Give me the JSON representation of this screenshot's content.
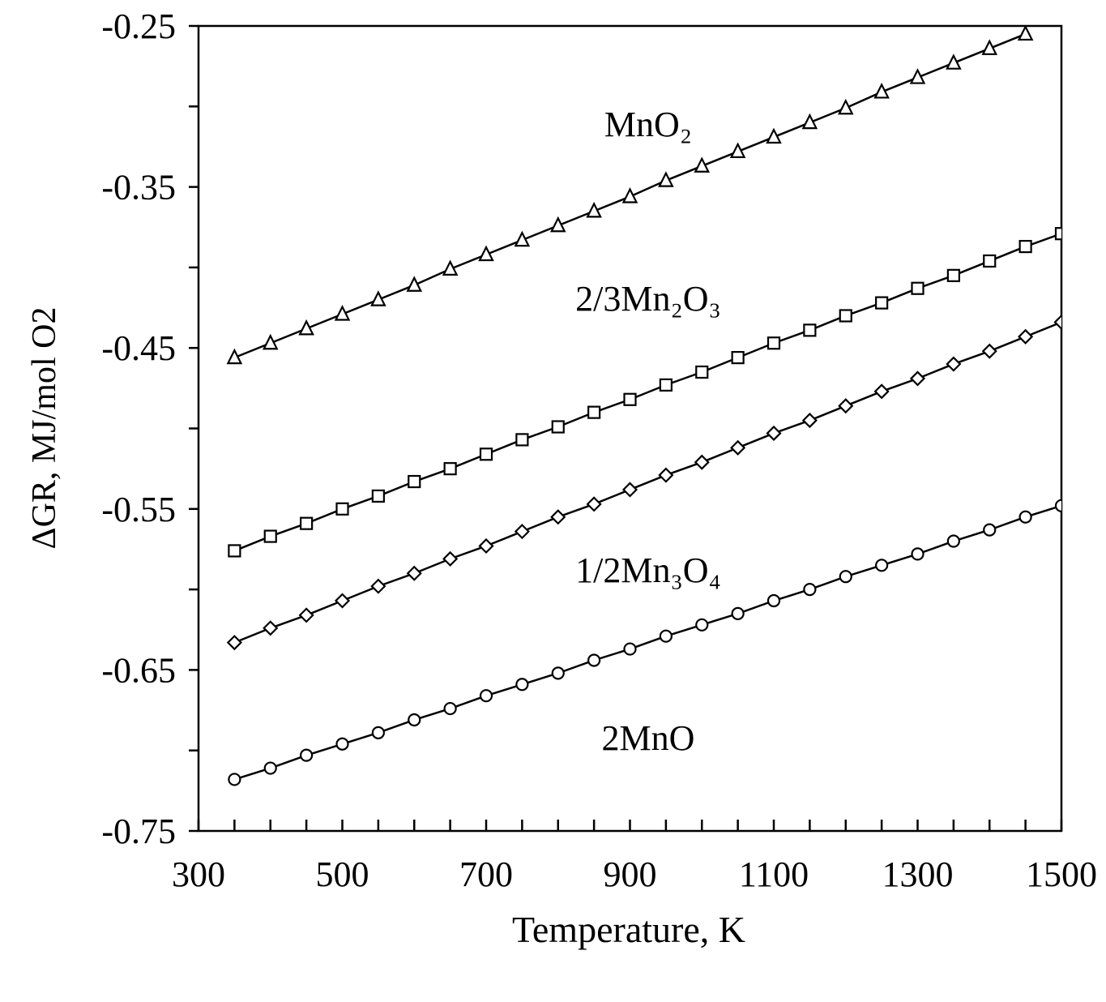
{
  "chart_data": {
    "type": "line",
    "x_label": "Temperature, K",
    "y_label": "ΔGR, MJ/mol O2",
    "x": [
      350,
      400,
      450,
      500,
      550,
      600,
      650,
      700,
      750,
      800,
      850,
      900,
      950,
      1000,
      1050,
      1100,
      1150,
      1200,
      1250,
      1300,
      1350,
      1400,
      1450,
      1500
    ],
    "series": [
      {
        "name": "MnO₂",
        "color": "#000000",
        "marker": "triangle",
        "values": [
          -0.456,
          -0.447,
          -0.438,
          -0.429,
          -0.42,
          -0.411,
          -0.401,
          -0.392,
          -0.383,
          -0.374,
          -0.365,
          -0.356,
          -0.346,
          -0.337,
          -0.328,
          -0.319,
          -0.31,
          -0.301,
          -0.291,
          -0.282,
          -0.273,
          -0.264,
          -0.255,
          null
        ]
      },
      {
        "name": "2/3Mn₂O₃",
        "color": "#000000",
        "marker": "square",
        "values": [
          -0.576,
          -0.567,
          -0.559,
          -0.55,
          -0.542,
          -0.533,
          -0.525,
          -0.516,
          -0.507,
          -0.499,
          -0.49,
          -0.482,
          -0.473,
          -0.465,
          -0.456,
          -0.447,
          -0.439,
          -0.43,
          -0.422,
          -0.413,
          -0.405,
          -0.396,
          -0.387,
          -0.379
        ]
      },
      {
        "name": "1/2Mn₃O₄",
        "color": "#000000",
        "marker": "diamond",
        "values": [
          -0.633,
          -0.624,
          -0.616,
          -0.607,
          -0.598,
          -0.59,
          -0.581,
          -0.573,
          -0.564,
          -0.555,
          -0.547,
          -0.538,
          -0.529,
          -0.521,
          -0.512,
          -0.503,
          -0.495,
          -0.486,
          -0.477,
          -0.469,
          -0.46,
          -0.452,
          -0.443,
          -0.434
        ]
      },
      {
        "name": "2MnO",
        "color": "#000000",
        "marker": "circle",
        "values": [
          -0.718,
          -0.711,
          -0.703,
          -0.696,
          -0.689,
          -0.681,
          -0.674,
          -0.666,
          -0.659,
          -0.652,
          -0.644,
          -0.637,
          -0.629,
          -0.622,
          -0.615,
          -0.607,
          -0.6,
          -0.592,
          -0.585,
          -0.578,
          -0.57,
          -0.563,
          -0.555,
          -0.548
        ]
      }
    ],
    "xlim": [
      300,
      1500
    ],
    "ylim": [
      -0.75,
      -0.25
    ],
    "xticks": [
      300,
      500,
      700,
      900,
      1100,
      1300,
      1500
    ],
    "xticks_minor": [
      350,
      400,
      450,
      550,
      600,
      650,
      750,
      800,
      850,
      950,
      1000,
      1050,
      1150,
      1200,
      1250,
      1350,
      1400,
      1450
    ],
    "yticks": [
      -0.75,
      -0.65,
      -0.55,
      -0.45,
      -0.35,
      -0.25
    ],
    "yticks_minor": [
      -0.7,
      -0.6,
      -0.5,
      -0.4,
      -0.3
    ],
    "grid": false
  }
}
